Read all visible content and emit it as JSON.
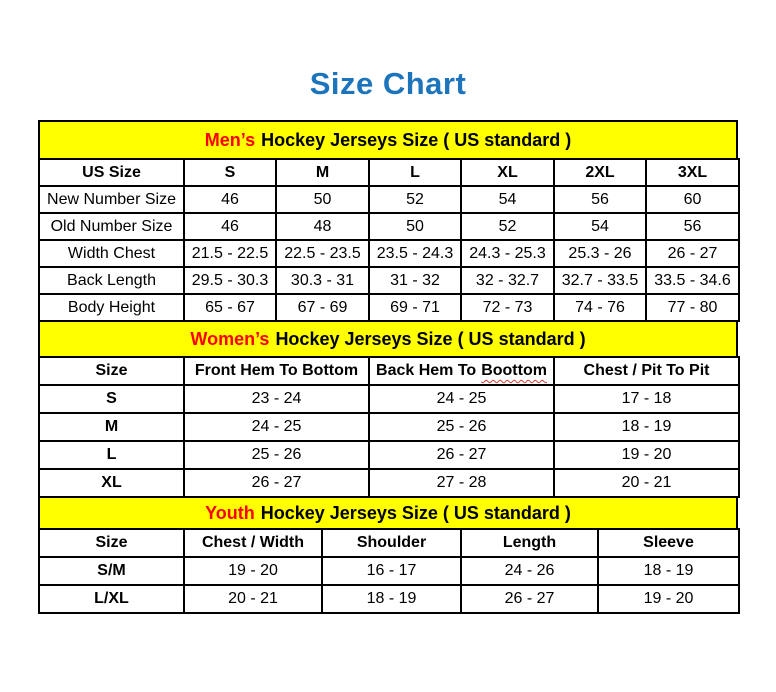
{
  "page_title": "Size Chart",
  "colors": {
    "title_blue": "#1c74bc",
    "section_highlight_red": "#ff0000",
    "section_band_yellow": "#ffff00",
    "typo_squiggle_red": "#d43c32",
    "border_black": "#000000"
  },
  "chart_data": [
    {
      "type": "table",
      "section": "mens",
      "title": "Men’s Hockey Jerseys Size ( US standard )",
      "title_highlight": "Men’s",
      "title_rest": "Hockey Jerseys Size ( US standard )",
      "columns": [
        "US Size",
        "S",
        "M",
        "L",
        "XL",
        "2XL",
        "3XL"
      ],
      "rows": [
        [
          "New Number Size",
          "46",
          "50",
          "52",
          "54",
          "56",
          "60"
        ],
        [
          "Old Number Size",
          "46",
          "48",
          "50",
          "52",
          "54",
          "56"
        ],
        [
          "Width Chest",
          "21.5 - 22.5",
          "22.5 - 23.5",
          "23.5 - 24.3",
          "24.3 - 25.3",
          "25.3 - 26",
          "26 - 27"
        ],
        [
          "Back Length",
          "29.5 - 30.3",
          "30.3 - 31",
          "31 - 32",
          "32 - 32.7",
          "32.7 - 33.5",
          "33.5 - 34.6"
        ],
        [
          "Body Height",
          "65 - 67",
          "67 - 69",
          "69 - 71",
          "72 - 73",
          "74 - 76",
          "77 - 80"
        ]
      ]
    },
    {
      "type": "table",
      "section": "womens",
      "title": "Women’s Hockey Jerseys Size ( US standard )",
      "title_highlight": "Women’s",
      "title_rest": "Hockey Jerseys Size ( US standard )",
      "columns": [
        "Size",
        "Front Hem To Bottom",
        "Back Hem To Boottom",
        "Chest / Pit To Pit"
      ],
      "typo": {
        "prefix": "Back Hem To",
        "word": "Boottom"
      },
      "rows": [
        [
          "S",
          "23 - 24",
          "24 - 25",
          "17 - 18"
        ],
        [
          "M",
          "24 - 25",
          "25 - 26",
          "18 - 19"
        ],
        [
          "L",
          "25 - 26",
          "26 - 27",
          "19 - 20"
        ],
        [
          "XL",
          "26 - 27",
          "27 - 28",
          "20 - 21"
        ]
      ]
    },
    {
      "type": "table",
      "section": "youth",
      "title": "Youth Hockey Jerseys Size ( US standard )",
      "title_highlight": "Youth",
      "title_rest": "Hockey Jerseys Size ( US standard )",
      "columns": [
        "Size",
        "Chest / Width",
        "Shoulder",
        "Length",
        "Sleeve"
      ],
      "rows": [
        [
          "S/M",
          "19 - 20",
          "16 - 17",
          "24 - 26",
          "18 - 19"
        ],
        [
          "L/XL",
          "20 - 21",
          "18 - 19",
          "26 - 27",
          "19 - 20"
        ]
      ]
    }
  ]
}
